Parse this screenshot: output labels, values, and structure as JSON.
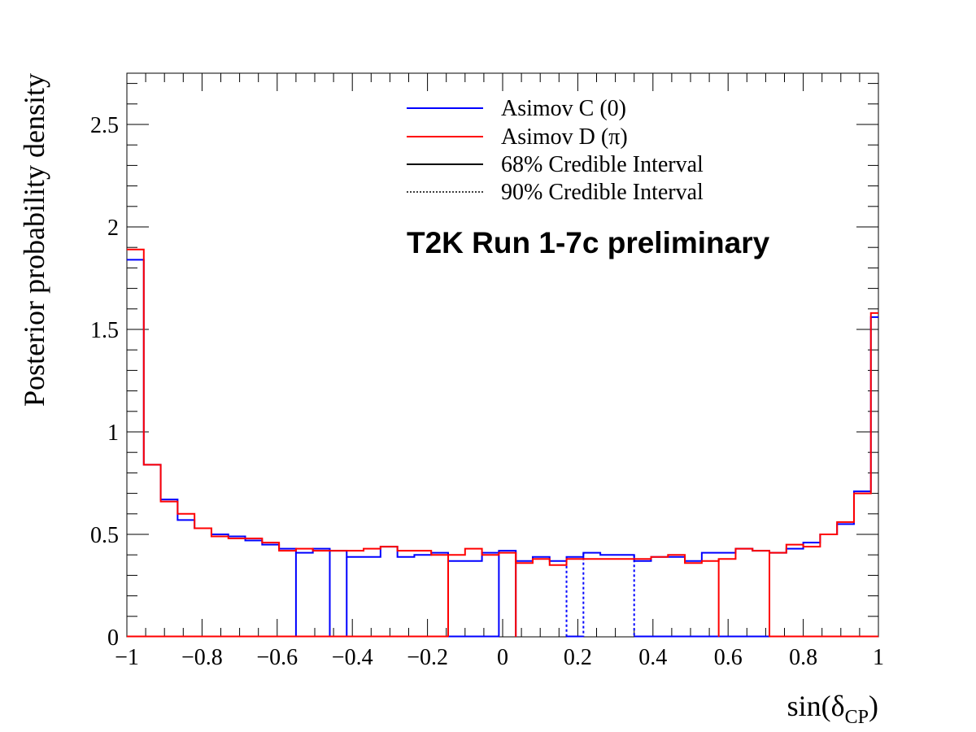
{
  "colors": {
    "blue": "#0000ff",
    "red": "#ff0000",
    "axis": "#000000"
  },
  "chart_data": {
    "type": "line",
    "style": "step histogram",
    "annotation": "T2K Run 1-7c preliminary",
    "xlabel": {
      "text": "sin(δ",
      "sub": "CP",
      "close": ")"
    },
    "ylabel": "Posterior probability density",
    "xlim": [
      -1,
      1
    ],
    "ylim": [
      0,
      2.75
    ],
    "x_ticks": [
      -1,
      -0.8,
      -0.6,
      -0.4,
      -0.2,
      0,
      0.2,
      0.4,
      0.6,
      0.8,
      1
    ],
    "x_tick_labels": [
      "−1",
      "−0.8",
      "−0.6",
      "−0.4",
      "−0.2",
      "0",
      "0.2",
      "0.4",
      "0.6",
      "0.8",
      "1"
    ],
    "y_ticks": [
      0,
      0.5,
      1,
      1.5,
      2,
      2.5
    ],
    "y_tick_labels": [
      "0",
      "0.5",
      "1",
      "1.5",
      "2",
      "2.5"
    ],
    "legend": {
      "placement": "top-right",
      "entries": [
        {
          "label": "Asimov C (0)",
          "color": "#0000ff",
          "style": "solid"
        },
        {
          "label": "Asimov D (π)",
          "color": "#ff0000",
          "style": "solid"
        },
        {
          "label": "68% Credible Interval",
          "color": "#000000",
          "style": "solid"
        },
        {
          "label": "90% Credible Interval",
          "color": "#000000",
          "style": "dotted"
        }
      ]
    },
    "bin_edges": [
      -1,
      -0.955,
      -0.91,
      -0.865,
      -0.82,
      -0.775,
      -0.73,
      -0.685,
      -0.64,
      -0.595,
      -0.55,
      -0.505,
      -0.46,
      -0.415,
      -0.37,
      -0.325,
      -0.28,
      -0.235,
      -0.19,
      -0.145,
      -0.1,
      -0.055,
      -0.01,
      0.035,
      0.08,
      0.125,
      0.17,
      0.215,
      0.26,
      0.305,
      0.35,
      0.395,
      0.44,
      0.485,
      0.53,
      0.575,
      0.62,
      0.665,
      0.71,
      0.755,
      0.8,
      0.845,
      0.89,
      0.935,
      0.98,
      1
    ],
    "series": [
      {
        "name": "Asimov C (0)",
        "color": "#0000ff",
        "values": [
          1.84,
          0.84,
          0.67,
          0.57,
          0.53,
          0.5,
          0.49,
          0.47,
          0.45,
          0.43,
          0.41,
          0.43,
          0.42,
          0.39,
          0.39,
          0.44,
          0.39,
          0.4,
          0.41,
          0.37,
          0.37,
          0.41,
          0.42,
          0.37,
          0.39,
          0.37,
          0.39,
          0.41,
          0.4,
          0.4,
          0.37,
          0.39,
          0.39,
          0.37,
          0.41,
          0.41,
          0.43,
          0.42,
          0.41,
          0.43,
          0.46,
          0.5,
          0.55,
          0.71,
          1.56
        ],
        "region": [
          0,
          0,
          0,
          0,
          0,
          0,
          0,
          0,
          0,
          0,
          1,
          1,
          0,
          1,
          1,
          1,
          1,
          1,
          1,
          0,
          0,
          0,
          1,
          2,
          2,
          2,
          0,
          2,
          2,
          2,
          0,
          0,
          0,
          0,
          0,
          0,
          0,
          0,
          0,
          0,
          0,
          0,
          0,
          0,
          0
        ]
      },
      {
        "name": "Asimov D (π)",
        "color": "#ff0000",
        "values": [
          1.89,
          0.84,
          0.66,
          0.6,
          0.53,
          0.49,
          0.48,
          0.48,
          0.46,
          0.42,
          0.43,
          0.42,
          0.42,
          0.42,
          0.43,
          0.44,
          0.42,
          0.42,
          0.4,
          0.4,
          0.43,
          0.4,
          0.41,
          0.36,
          0.38,
          0.35,
          0.38,
          0.38,
          0.38,
          0.38,
          0.38,
          0.39,
          0.4,
          0.36,
          0.37,
          0.38,
          0.43,
          0.42,
          0.41,
          0.45,
          0.44,
          0.5,
          0.56,
          0.7,
          1.58
        ],
        "region": [
          0,
          0,
          0,
          0,
          0,
          0,
          0,
          0,
          0,
          0,
          0,
          0,
          0,
          0,
          0,
          0,
          0,
          0,
          0,
          1,
          1,
          1,
          1,
          2,
          2,
          2,
          2,
          2,
          2,
          2,
          2,
          2,
          2,
          2,
          2,
          1,
          1,
          1,
          0,
          0,
          0,
          0,
          0,
          0,
          0
        ]
      }
    ]
  }
}
